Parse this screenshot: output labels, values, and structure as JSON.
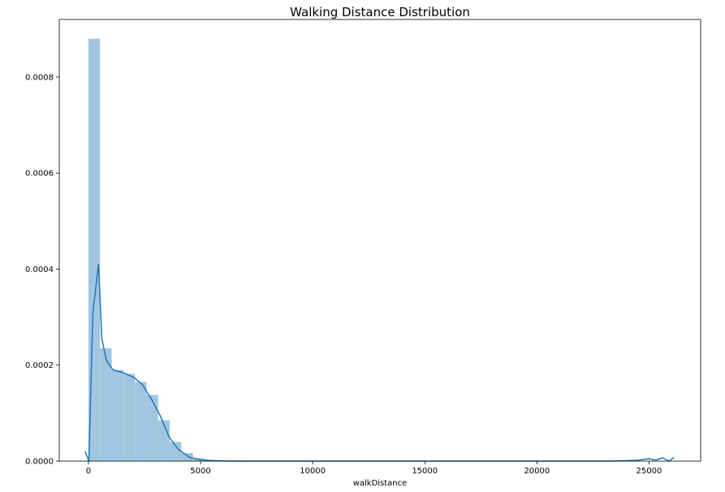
{
  "chart_data": {
    "type": "bar",
    "title": "Walking Distance Distribution",
    "xlabel": "walkDistance",
    "ylabel": "",
    "xlim": [
      -1300,
      27300
    ],
    "ylim": [
      0,
      0.00092
    ],
    "xticks": [
      0,
      5000,
      10000,
      15000,
      20000,
      25000
    ],
    "yticks": [
      0.0,
      0.0002,
      0.0004,
      0.0006,
      0.0008
    ],
    "ytick_labels": [
      "0.0000",
      "0.0002",
      "0.0004",
      "0.0006",
      "0.0008"
    ],
    "grid": false,
    "legend": false,
    "histogram": {
      "bin_width": 518,
      "bin_starts": [
        0,
        518,
        1036,
        1554,
        2072,
        2590,
        3108,
        3626,
        4144,
        4662,
        5180,
        5698,
        6216,
        6734
      ],
      "values": [
        0.00088,
        0.000235,
        0.00019,
        0.000182,
        0.000165,
        0.000138,
        8.5e-05,
        4e-05,
        1.7e-05,
        6e-06,
        3e-06,
        2e-06,
        1e-06,
        1e-06
      ],
      "color": "#a2c6e1"
    },
    "kde": {
      "color": "#1f77b4",
      "x": [
        -150,
        20,
        200,
        450,
        600,
        800,
        1100,
        1500,
        2000,
        2400,
        2800,
        3200,
        3600,
        4000,
        4500,
        5000,
        5500,
        6000,
        7000,
        8000,
        10000,
        15000,
        20000,
        23000,
        24000,
        24500,
        25000,
        25300,
        25600,
        25900,
        26100
      ],
      "y": [
        2e-05,
        0.0,
        0.00031,
        0.00041,
        0.000255,
        0.00021,
        0.00019,
        0.000185,
        0.000175,
        0.00016,
        0.00013,
        9.5e-05,
        5e-05,
        2.5e-05,
        8e-06,
        3e-06,
        1e-06,
        5e-07,
        0.0,
        0.0,
        0.0,
        0.0,
        0.0,
        0.0,
        1e-06,
        2e-06,
        5e-06,
        2e-06,
        7e-06,
        0.0,
        8e-06
      ]
    }
  }
}
